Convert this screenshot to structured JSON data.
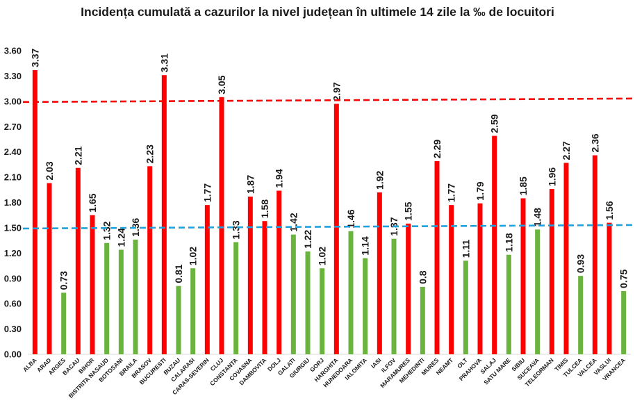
{
  "chart_data": {
    "type": "bar",
    "title": "Incidența cumulată a cazurilor la nivel județean în ultimele 14 zile la ‰ de locuitori",
    "xlabel": "",
    "ylabel": "",
    "ylim": [
      0,
      3.6
    ],
    "yticks": [
      "0.00",
      "0.30",
      "0.60",
      "0.90",
      "1.20",
      "1.50",
      "1.80",
      "2.10",
      "2.40",
      "2.70",
      "3.00",
      "3.30",
      "3.60"
    ],
    "grid": false,
    "legend": "none",
    "colors": {
      "above": "#ff0000",
      "below": "#6ab33e",
      "line_3": "#ff0000",
      "line_15": "#1aa3e0"
    },
    "reference_lines": [
      {
        "value": 3.0,
        "color": "#ff0000",
        "style": "dashed"
      },
      {
        "value": 1.5,
        "color": "#1aa3e0",
        "style": "dashed"
      }
    ],
    "categories": [
      "ALBA",
      "ARAD",
      "ARGES",
      "BACAU",
      "BIHOR",
      "BISTRITA NASAUD",
      "BOTOSANI",
      "BRAILA",
      "BRASOV",
      "BUCURESTI",
      "BUZAU",
      "CALARASI",
      "CARAS-SEVERIN",
      "CLUJ",
      "CONSTANTA",
      "COVASNA",
      "DAMBOVITA",
      "DOLJ",
      "GALATI",
      "GIURGIU",
      "GORJ",
      "HARGHITA",
      "HUNEDOARA",
      "IALOMITA",
      "IASI",
      "ILFOV",
      "MARAMURES",
      "MEHEDINTI",
      "MURES",
      "NEAMT",
      "OLT",
      "PRAHOVA",
      "SALAJ",
      "SATU MARE",
      "SIBIU",
      "SUCEAVA",
      "TELEORMAN",
      "TIMIS",
      "TULCEA",
      "VALCEA",
      "VASLUI",
      "VRANCEA"
    ],
    "values": [
      3.37,
      2.03,
      0.73,
      2.21,
      1.65,
      1.32,
      1.24,
      1.36,
      2.23,
      3.31,
      0.81,
      1.02,
      1.77,
      3.05,
      1.33,
      1.87,
      1.58,
      1.94,
      1.42,
      1.22,
      1.02,
      2.97,
      1.46,
      1.14,
      1.92,
      1.37,
      1.55,
      0.8,
      2.29,
      1.77,
      1.11,
      1.79,
      2.59,
      1.18,
      1.85,
      1.48,
      1.96,
      2.27,
      0.93,
      2.36,
      1.56,
      0.75
    ],
    "value_labels": [
      "3.37",
      "2.03",
      "0.73",
      "2.21",
      "1.65",
      "1.32",
      "1.24",
      "1.36",
      "2.23",
      "3.31",
      "0.81",
      "1.02",
      "1.77",
      "3.05",
      "1.33",
      "1.87",
      "1.58",
      "1.94",
      "1.42",
      "1.22",
      "1.02",
      "2.97",
      "1.46",
      "1.14",
      "1.92",
      "1.37",
      "1.55",
      "0.8",
      "2.29",
      "1.77",
      "1.11",
      "1.79",
      "2.59",
      "1.18",
      "1.85",
      "1.48",
      "1.96",
      "2.27",
      "0.93",
      "2.36",
      "1.56",
      "0.75"
    ]
  }
}
